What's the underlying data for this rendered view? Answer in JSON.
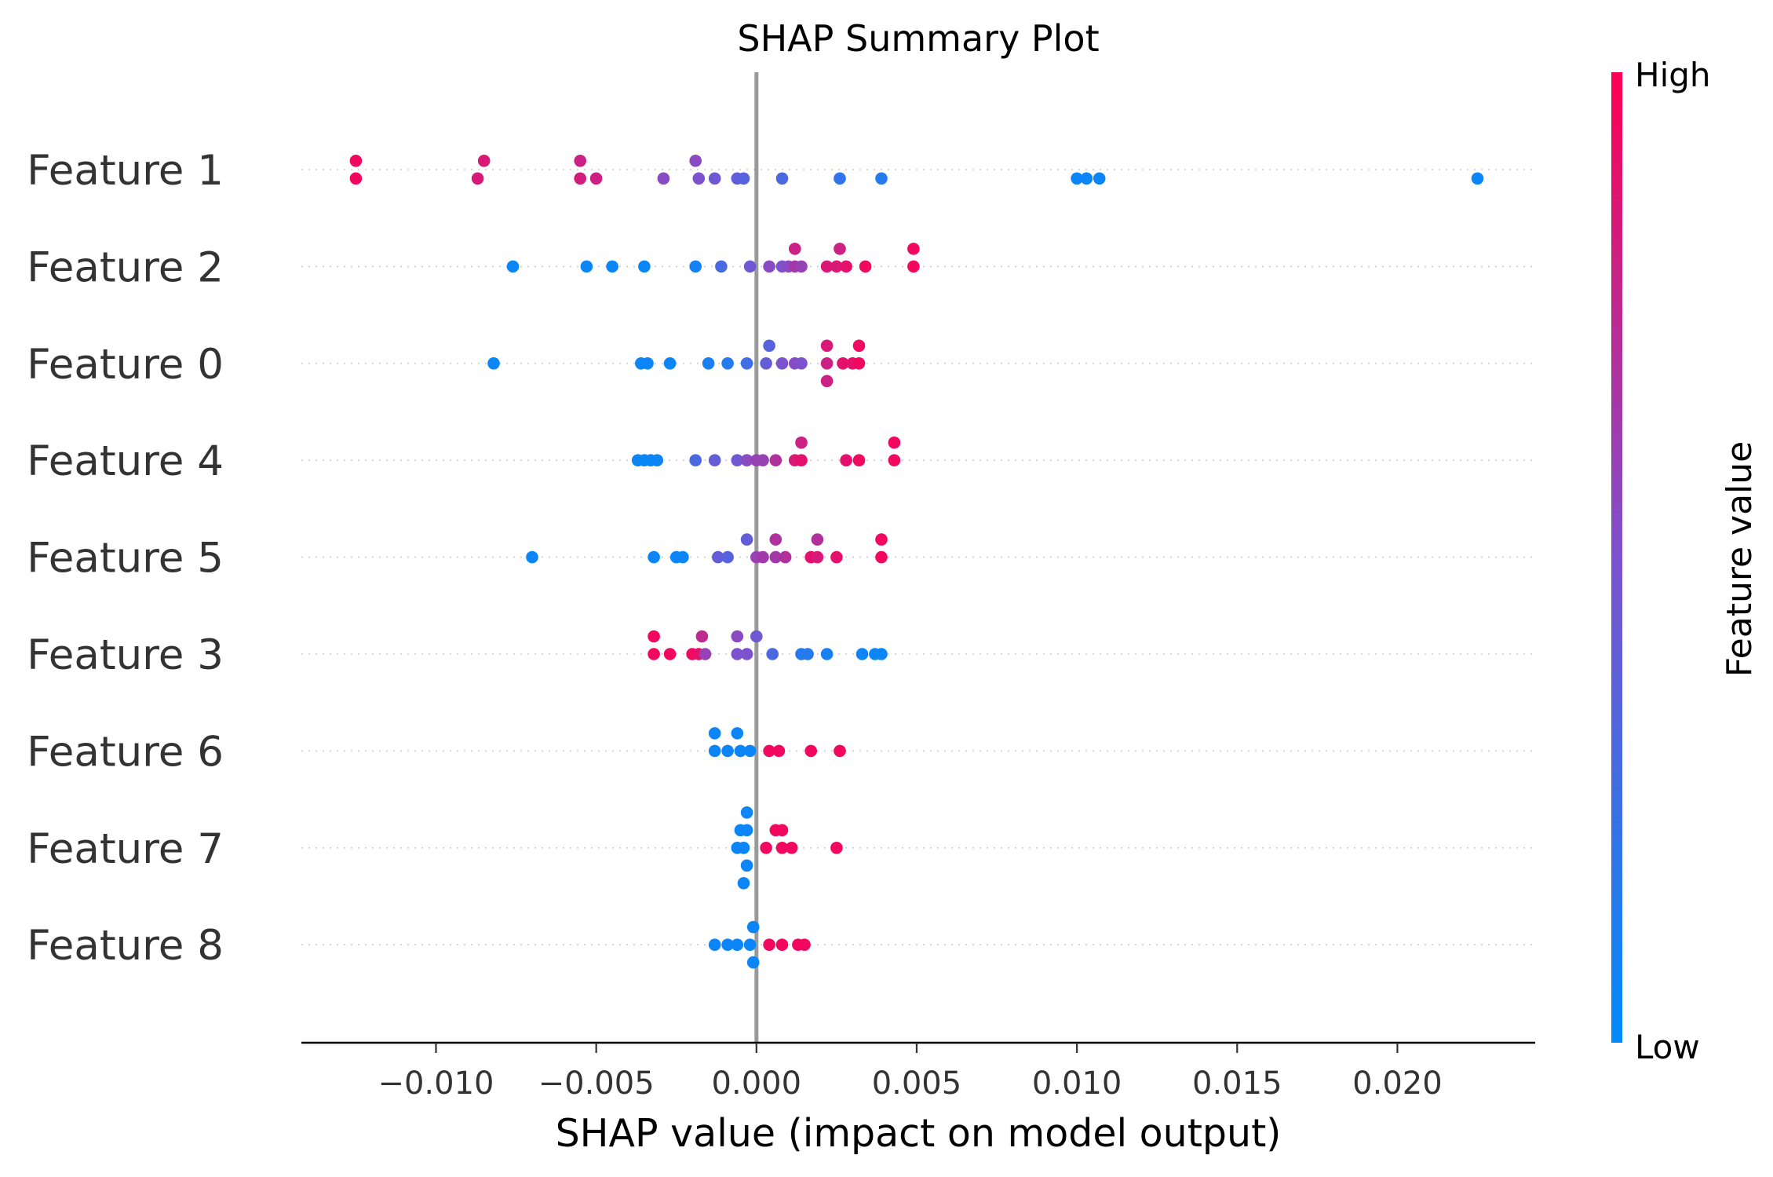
{
  "chart_data": {
    "type": "scatter",
    "title": "SHAP Summary Plot",
    "xlabel": "SHAP value (impact on model output)",
    "xlim": [
      -0.0142,
      0.0243
    ],
    "xticks": [
      -0.01,
      -0.005,
      0.0,
      0.005,
      0.01,
      0.015,
      0.02
    ],
    "xtick_labels": [
      "−0.010",
      "−0.005",
      "0.000",
      "0.005",
      "0.010",
      "0.015",
      "0.020"
    ],
    "zero_line": 0,
    "grid": false,
    "colorbar": {
      "label": "Feature value",
      "high_label": "High",
      "low_label": "Low",
      "low_color": "#008bfb",
      "mid_color": "#7c52ce",
      "high_color": "#ff0052"
    },
    "features": [
      {
        "name": "Feature 1",
        "points": [
          [
            -0.0125,
            0.95,
            0.5
          ],
          [
            -0.0125,
            0.95,
            -0.5
          ],
          [
            -0.0085,
            0.85,
            0.5
          ],
          [
            -0.0087,
            0.85,
            -0.5
          ],
          [
            -0.0055,
            0.8,
            0.5
          ],
          [
            -0.0055,
            0.82,
            -0.5
          ],
          [
            -0.005,
            0.8,
            -0.5
          ],
          [
            -0.0019,
            0.55,
            0.5
          ],
          [
            -0.0029,
            0.55,
            -0.5
          ],
          [
            -0.0018,
            0.5,
            -0.5
          ],
          [
            -0.0013,
            0.45,
            -0.5
          ],
          [
            -0.0006,
            0.4,
            -0.5
          ],
          [
            -0.0004,
            0.35,
            -0.5
          ],
          [
            0.0008,
            0.3,
            -0.5
          ],
          [
            0.0026,
            0.2,
            -0.5
          ],
          [
            0.0039,
            0.15,
            -0.5
          ],
          [
            0.01,
            0.05,
            -0.5
          ],
          [
            0.0103,
            0.05,
            -0.5
          ],
          [
            0.0107,
            0.05,
            -0.5
          ],
          [
            0.0225,
            0.05,
            -0.5
          ]
        ]
      },
      {
        "name": "Feature 2",
        "points": [
          [
            -0.0076,
            0.05,
            0
          ],
          [
            -0.0053,
            0.05,
            0
          ],
          [
            -0.0045,
            0.05,
            0
          ],
          [
            -0.0035,
            0.05,
            0
          ],
          [
            -0.0019,
            0.08,
            0
          ],
          [
            -0.0011,
            0.3,
            0
          ],
          [
            -0.0002,
            0.45,
            0
          ],
          [
            0.0004,
            0.55,
            0
          ],
          [
            0.0008,
            0.5,
            0
          ],
          [
            0.001,
            0.55,
            0
          ],
          [
            0.0012,
            0.65,
            0
          ],
          [
            0.0014,
            0.6,
            0
          ],
          [
            0.0012,
            0.8,
            1
          ],
          [
            0.0022,
            0.85,
            0
          ],
          [
            0.0025,
            0.85,
            0
          ],
          [
            0.0026,
            0.8,
            1
          ],
          [
            0.0028,
            0.9,
            0
          ],
          [
            0.0034,
            0.95,
            0
          ],
          [
            0.0049,
            0.95,
            1
          ],
          [
            0.0049,
            0.95,
            0
          ]
        ]
      },
      {
        "name": "Feature 0",
        "points": [
          [
            -0.0082,
            0.05,
            0
          ],
          [
            -0.0036,
            0.05,
            0
          ],
          [
            -0.0034,
            0.05,
            0
          ],
          [
            -0.0027,
            0.05,
            0
          ],
          [
            -0.0015,
            0.1,
            0
          ],
          [
            -0.0009,
            0.15,
            0
          ],
          [
            -0.0003,
            0.25,
            0
          ],
          [
            0.0003,
            0.4,
            0
          ],
          [
            0.0004,
            0.35,
            1
          ],
          [
            0.0008,
            0.5,
            0
          ],
          [
            0.0012,
            0.55,
            0
          ],
          [
            0.0014,
            0.5,
            0
          ],
          [
            0.0022,
            0.8,
            0
          ],
          [
            0.0022,
            0.85,
            1
          ],
          [
            0.0022,
            0.8,
            -1
          ],
          [
            0.0027,
            0.9,
            0
          ],
          [
            0.003,
            0.9,
            0
          ],
          [
            0.0032,
            0.95,
            0
          ],
          [
            0.0032,
            0.95,
            1
          ]
        ]
      },
      {
        "name": "Feature 4",
        "points": [
          [
            -0.0037,
            0.05,
            0
          ],
          [
            -0.0035,
            0.05,
            0
          ],
          [
            -0.0033,
            0.05,
            0
          ],
          [
            -0.0031,
            0.05,
            0
          ],
          [
            -0.0019,
            0.3,
            0
          ],
          [
            -0.0013,
            0.4,
            0
          ],
          [
            -0.0006,
            0.45,
            0
          ],
          [
            -0.0003,
            0.55,
            0
          ],
          [
            0.0,
            0.6,
            0
          ],
          [
            0.0002,
            0.6,
            0
          ],
          [
            0.0006,
            0.7,
            0
          ],
          [
            0.0012,
            0.85,
            0
          ],
          [
            0.0014,
            0.9,
            0
          ],
          [
            0.0014,
            0.8,
            1
          ],
          [
            0.0028,
            0.9,
            0
          ],
          [
            0.0032,
            0.95,
            0
          ],
          [
            0.0043,
            0.95,
            0
          ],
          [
            0.0043,
            0.95,
            1
          ]
        ]
      },
      {
        "name": "Feature 5",
        "points": [
          [
            -0.007,
            0.05,
            0
          ],
          [
            -0.0032,
            0.05,
            0
          ],
          [
            -0.0025,
            0.05,
            0
          ],
          [
            -0.0023,
            0.05,
            0
          ],
          [
            -0.0012,
            0.4,
            0
          ],
          [
            -0.0009,
            0.35,
            0
          ],
          [
            -0.0003,
            0.4,
            1
          ],
          [
            0.0,
            0.6,
            0
          ],
          [
            0.0002,
            0.65,
            0
          ],
          [
            0.0006,
            0.65,
            0
          ],
          [
            0.0006,
            0.7,
            1
          ],
          [
            0.0009,
            0.7,
            0
          ],
          [
            0.0017,
            0.9,
            0
          ],
          [
            0.0019,
            0.85,
            0
          ],
          [
            0.0019,
            0.7,
            1
          ],
          [
            0.0025,
            0.9,
            0
          ],
          [
            0.0039,
            0.95,
            0
          ],
          [
            0.0039,
            0.95,
            1
          ]
        ]
      },
      {
        "name": "Feature 3",
        "points": [
          [
            -0.0032,
            0.95,
            1
          ],
          [
            -0.0032,
            0.95,
            0
          ],
          [
            -0.0027,
            0.95,
            0
          ],
          [
            -0.002,
            0.95,
            0
          ],
          [
            -0.0018,
            0.9,
            0
          ],
          [
            -0.0017,
            0.75,
            1
          ],
          [
            -0.0016,
            0.6,
            0
          ],
          [
            -0.0006,
            0.55,
            1
          ],
          [
            -0.0006,
            0.5,
            0
          ],
          [
            -0.0003,
            0.5,
            0
          ],
          [
            0.0,
            0.45,
            1
          ],
          [
            0.0005,
            0.3,
            0
          ],
          [
            0.0014,
            0.15,
            0
          ],
          [
            0.0016,
            0.15,
            0
          ],
          [
            0.0022,
            0.1,
            0
          ],
          [
            0.0033,
            0.05,
            0
          ],
          [
            0.0037,
            0.05,
            0
          ],
          [
            0.0039,
            0.05,
            0
          ]
        ]
      },
      {
        "name": "Feature 6",
        "points": [
          [
            -0.0013,
            0.05,
            1
          ],
          [
            -0.0013,
            0.05,
            0
          ],
          [
            -0.0006,
            0.05,
            1
          ],
          [
            -0.0009,
            0.05,
            0
          ],
          [
            -0.0005,
            0.05,
            0
          ],
          [
            -0.0002,
            0.05,
            0
          ],
          [
            0.0004,
            0.95,
            0
          ],
          [
            0.0007,
            0.95,
            0
          ],
          [
            0.0017,
            0.95,
            0
          ],
          [
            0.0026,
            0.95,
            0
          ]
        ]
      },
      {
        "name": "Feature 7",
        "points": [
          [
            -0.0003,
            0.05,
            2
          ],
          [
            -0.0005,
            0.05,
            1
          ],
          [
            -0.0003,
            0.05,
            1
          ],
          [
            -0.0006,
            0.05,
            0
          ],
          [
            -0.0004,
            0.05,
            0
          ],
          [
            -0.0003,
            0.05,
            -1
          ],
          [
            -0.0004,
            0.05,
            -2
          ],
          [
            0.0006,
            0.95,
            1
          ],
          [
            0.0008,
            0.95,
            1
          ],
          [
            0.0003,
            0.95,
            0
          ],
          [
            0.0008,
            0.95,
            0
          ],
          [
            0.0011,
            0.95,
            0
          ],
          [
            0.0025,
            0.95,
            0
          ]
        ]
      },
      {
        "name": "Feature 8",
        "points": [
          [
            -0.0001,
            0.05,
            1
          ],
          [
            -0.0013,
            0.05,
            0
          ],
          [
            -0.0009,
            0.05,
            0
          ],
          [
            -0.0006,
            0.05,
            0
          ],
          [
            -0.0002,
            0.05,
            0
          ],
          [
            -0.0001,
            0.05,
            -1
          ],
          [
            0.0004,
            0.95,
            0
          ],
          [
            0.0008,
            0.95,
            0
          ],
          [
            0.0013,
            0.95,
            0
          ],
          [
            0.0015,
            0.95,
            0
          ]
        ]
      }
    ]
  }
}
